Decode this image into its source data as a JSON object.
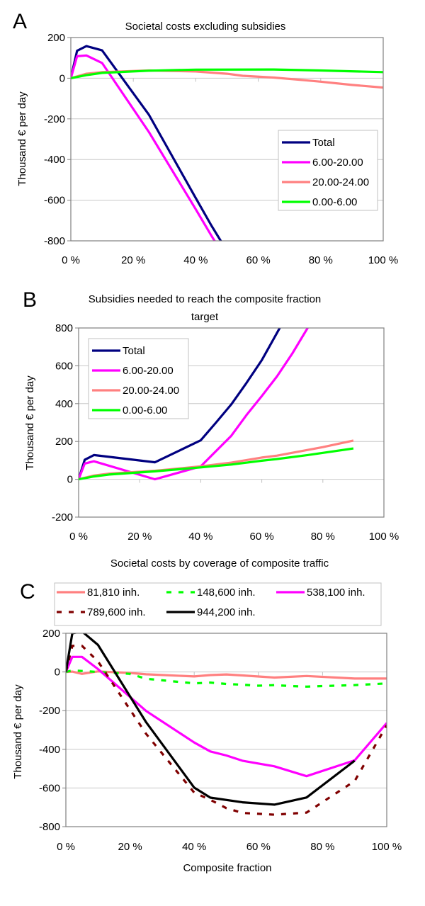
{
  "figure": {
    "panel_letters": [
      "A",
      "B",
      "C"
    ]
  },
  "chart_data": [
    {
      "panel": "A",
      "type": "line",
      "title": "Societal costs excluding subsidies",
      "xlabel": "",
      "ylabel": "Thousand € per day",
      "xlim": [
        0,
        100
      ],
      "ylim": [
        -800,
        200
      ],
      "xticks": [
        0,
        20,
        40,
        60,
        80,
        100
      ],
      "xtick_labels": [
        "0 %",
        "20 %",
        "40 %",
        "60 %",
        "80 %",
        "100 %"
      ],
      "yticks": [
        200,
        0,
        -200,
        -400,
        -600,
        -800
      ],
      "ytick_labels": [
        "200",
        "0",
        "-200",
        "-400",
        "-600",
        "-800"
      ],
      "grid": "horizontal",
      "legend_position": "right-middle",
      "series": [
        {
          "name": "Total",
          "color": "#000080",
          "dash": "solid",
          "x": [
            0,
            2,
            5,
            10,
            25,
            40,
            45,
            50
          ],
          "y": [
            0,
            135,
            158,
            137,
            -180,
            -590,
            -725,
            -850
          ]
        },
        {
          "name": "6.00-20.00",
          "color": "#FF00FF",
          "dash": "solid",
          "x": [
            0,
            2,
            5,
            10,
            25,
            40,
            45,
            50
          ],
          "y": [
            0,
            108,
            112,
            75,
            -265,
            -645,
            -775,
            -900
          ]
        },
        {
          "name": "20.00-24.00",
          "color": "#FF8080",
          "dash": "solid",
          "x": [
            0,
            5,
            10,
            25,
            40,
            50,
            55,
            65,
            75,
            80,
            90,
            100
          ],
          "y": [
            0,
            22,
            30,
            38,
            33,
            22,
            12,
            3,
            -10,
            -17,
            -33,
            -46
          ]
        },
        {
          "name": "0.00-6.00",
          "color": "#00FF00",
          "dash": "solid",
          "x": [
            0,
            5,
            10,
            25,
            40,
            65,
            80,
            100
          ],
          "y": [
            0,
            15,
            26,
            37,
            42,
            43,
            38,
            30
          ]
        }
      ]
    },
    {
      "panel": "B",
      "type": "line",
      "title": "Subsidies needed to reach the composite fraction target",
      "title_lines": [
        "Subsidies needed to reach the composite fraction",
        "target"
      ],
      "xlabel": "",
      "ylabel": "Thousand € per day",
      "xlim": [
        0,
        100
      ],
      "ylim": [
        -200,
        800
      ],
      "xticks": [
        0,
        20,
        40,
        60,
        80,
        100
      ],
      "xtick_labels": [
        "0 %",
        "20 %",
        "40 %",
        "60 %",
        "80 %",
        "100 %"
      ],
      "yticks": [
        800,
        600,
        400,
        200,
        0,
        -200
      ],
      "ytick_labels": [
        "800",
        "600",
        "400",
        "200",
        "0",
        "-200"
      ],
      "grid": "horizontal",
      "legend_position": "top-left",
      "series": [
        {
          "name": "Total",
          "color": "#000080",
          "dash": "solid",
          "x": [
            0,
            2,
            5,
            25,
            40,
            45,
            50,
            55,
            60,
            65,
            70
          ],
          "y": [
            0,
            103,
            128,
            90,
            206,
            300,
            396,
            510,
            630,
            775,
            920
          ]
        },
        {
          "name": "6.00-20.00",
          "color": "#FF00FF",
          "dash": "solid",
          "x": [
            0,
            2,
            5,
            25,
            40,
            50,
            55,
            60,
            65,
            70,
            75,
            80
          ],
          "y": [
            0,
            83,
            95,
            0,
            68,
            230,
            340,
            440,
            545,
            665,
            800,
            930
          ]
        },
        {
          "name": "20.00-24.00",
          "color": "#FF8080",
          "dash": "solid",
          "x": [
            0,
            5,
            10,
            25,
            40,
            50,
            60,
            65,
            75,
            80,
            90
          ],
          "y": [
            0,
            20,
            30,
            45,
            68,
            88,
            115,
            125,
            155,
            170,
            205
          ]
        },
        {
          "name": "0.00-6.00",
          "color": "#00FF00",
          "dash": "solid",
          "x": [
            0,
            5,
            10,
            25,
            40,
            50,
            60,
            65,
            75,
            90
          ],
          "y": [
            0,
            15,
            25,
            42,
            63,
            78,
            98,
            107,
            128,
            163
          ]
        }
      ]
    },
    {
      "panel": "C",
      "type": "line",
      "title": "Societal costs by coverage of composite traffic",
      "xlabel": "Composite fraction",
      "ylabel": "Thousand € per day",
      "xlim": [
        0,
        100
      ],
      "ylim": [
        -800,
        200
      ],
      "xticks": [
        0,
        20,
        40,
        60,
        80,
        100
      ],
      "xtick_labels": [
        "0 %",
        "20 %",
        "40 %",
        "60 %",
        "80 %",
        "100 %"
      ],
      "yticks": [
        200,
        0,
        -200,
        -400,
        -600,
        -800
      ],
      "ytick_labels": [
        "200",
        "0",
        "-200",
        "-400",
        "-600",
        "-800"
      ],
      "grid": "horizontal",
      "legend_position": "top",
      "series": [
        {
          "name": "81,810 inh.",
          "color": "#FF8080",
          "dash": "solid",
          "x": [
            0,
            2,
            5,
            10,
            20,
            25,
            40,
            45,
            50,
            55,
            65,
            75,
            90,
            100
          ],
          "y": [
            0,
            2,
            -10,
            3,
            -5,
            -12,
            -23,
            -16,
            -13,
            -18,
            -29,
            -21,
            -34,
            -34
          ]
        },
        {
          "name": "148,600 inh.",
          "color": "#00FF00",
          "dash": "dashed",
          "x": [
            0,
            2,
            5,
            10,
            20,
            25,
            40,
            45,
            50,
            55,
            60,
            65,
            70,
            75,
            80,
            90,
            100
          ],
          "y": [
            0,
            8,
            5,
            0,
            -10,
            -35,
            -59,
            -55,
            -62,
            -66,
            -71,
            -68,
            -73,
            -76,
            -73,
            -68,
            -59
          ]
        },
        {
          "name": "538,100 inh.",
          "color": "#FF00FF",
          "dash": "solid",
          "x": [
            0,
            2,
            5,
            10,
            25,
            40,
            45,
            50,
            55,
            65,
            75,
            90,
            100
          ],
          "y": [
            0,
            78,
            78,
            15,
            -202,
            -365,
            -411,
            -432,
            -459,
            -488,
            -539,
            -457,
            -264
          ]
        },
        {
          "name": "789,600 inh.",
          "color": "#800000",
          "dash": "dashed",
          "x": [
            0,
            2,
            5,
            10,
            25,
            40,
            45,
            50,
            55,
            65,
            75,
            90,
            100
          ],
          "y": [
            0,
            135,
            135,
            55,
            -320,
            -624,
            -661,
            -704,
            -729,
            -738,
            -727,
            -564,
            -276
          ]
        },
        {
          "name": "944,200 inh.",
          "color": "#000000",
          "dash": "solid",
          "x": [
            0,
            2,
            5,
            10,
            25,
            40,
            45,
            55,
            65,
            75,
            90
          ],
          "y": [
            0,
            200,
            210,
            140,
            -260,
            -598,
            -650,
            -674,
            -686,
            -649,
            -459
          ]
        }
      ]
    }
  ]
}
